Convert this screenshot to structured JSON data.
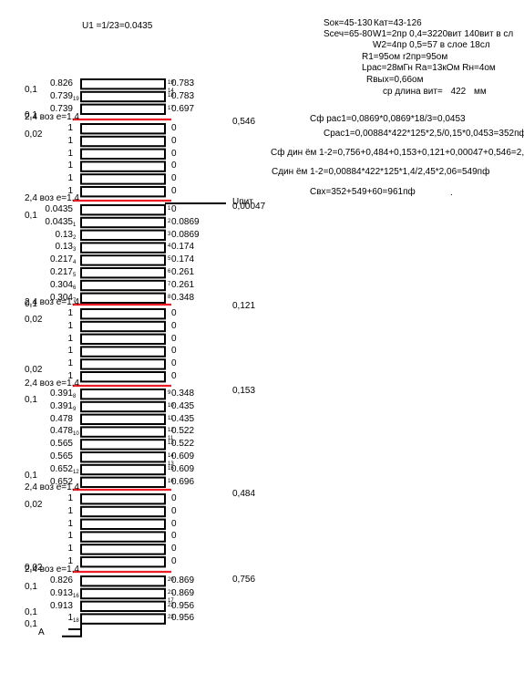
{
  "header": {
    "u1": "U1 =1/23=0.0435",
    "sok": "Sок=45-130",
    "kat": "Кат=43-126",
    "ssech": "Sсеч=65-80",
    "w1": "W1=2пр  0,4=3220вит 140вит в сл",
    "w2": "W2=4пр  0,5=57 в слое   18сл",
    "r1": "R1=95ом    r2пр=95ом",
    "lrac": "Lрас=28мГн  Rа=13кОм  Rн=4ом",
    "rvyh": "Rвых=0,66ом",
    "len_label": "ср длина вит=",
    "len_value": "422",
    "len_unit": "мм"
  },
  "formulas": {
    "cf1": "Сф рас1=0,0869*0,0869*18/3=0,0453",
    "crac1": "Срас1=0,00884*422*125*2,5/0,15*0,0453=352пф",
    "cfdin": "Сф дин ём 1-2=0,756+0,484+0,153+0,121+0,00047+0,546=2,06",
    "cdin": "Сдин ём 1-2=0,00884*422*125*1,4/2,45*2,06=549пф",
    "cvx": "Свх=352+549+60=961пф",
    "dot": "."
  },
  "diagram": {
    "sep_label": "2,4 воз е=1,4",
    "side_labels": {
      "a": "0,1",
      "b": "0,02"
    },
    "upit": "Uпит",
    "terminal": "A",
    "sep_values": [
      "0,546",
      "0,00047",
      "0,121",
      "0,153",
      "0,484",
      "0,756"
    ],
    "blocks": [
      {
        "side": [
          {
            "text": "0,1",
            "row": 0
          },
          {
            "text": "0,1",
            "row": 2
          }
        ],
        "rows": [
          {
            "l": "0.826",
            "r": "0.783",
            "nl": "",
            "nr": "19"
          },
          {
            "l": "0.739",
            "r": "0.783",
            "nl": "19",
            "nr": "18"
          },
          {
            "l": "0.739",
            "r": "0.697",
            "nl": "",
            "nr": "17"
          }
        ],
        "extra_nums": [
          {
            "text": "14",
            "row": 1
          }
        ]
      },
      {
        "side": [
          {
            "text": "0,02",
            "row": 0
          }
        ],
        "rows": [
          {
            "l": "1",
            "r": "0",
            "nl": "",
            "nr": ""
          },
          {
            "l": "1",
            "r": "0",
            "nl": "",
            "nr": ""
          },
          {
            "l": "1",
            "r": "0",
            "nl": "",
            "nr": ""
          },
          {
            "l": "1",
            "r": "0",
            "nl": "",
            "nr": ""
          },
          {
            "l": "1",
            "r": "0",
            "nl": "",
            "nr": ""
          },
          {
            "l": "1",
            "r": "0",
            "nl": "",
            "nr": ""
          }
        ],
        "extra_nums": []
      },
      {
        "side": [
          {
            "text": "0,1",
            "row": 0
          },
          {
            "text": "0,1",
            "row": 7
          }
        ],
        "rows": [
          {
            "l": "0.0435",
            "r": "0",
            "nl": "",
            "nr": "1"
          },
          {
            "l": "0.0435",
            "r": "0.0869",
            "nl": "1",
            "nr": "2"
          },
          {
            "l": "0.13",
            "r": "0.0869",
            "nl": "2",
            "nr": "3"
          },
          {
            "l": "0.13",
            "r": "0.174",
            "nl": "3",
            "nr": "4"
          },
          {
            "l": "0.217",
            "r": "0.174",
            "nl": "4",
            "nr": "5"
          },
          {
            "l": "0.217",
            "r": "0.261",
            "nl": "5",
            "nr": "6"
          },
          {
            "l": "0.304",
            "r": "0.261",
            "nl": "6",
            "nr": "7"
          },
          {
            "l": "0.304",
            "r": "0.348",
            "nl": "7",
            "nr": "8"
          }
        ],
        "extra_nums": []
      },
      {
        "side": [
          {
            "text": "0,02",
            "row": 0
          },
          {
            "text": "0,02",
            "row": 4
          }
        ],
        "rows": [
          {
            "l": "1",
            "r": "0",
            "nl": "",
            "nr": ""
          },
          {
            "l": "1",
            "r": "0",
            "nl": "",
            "nr": ""
          },
          {
            "l": "1",
            "r": "0",
            "nl": "",
            "nr": ""
          },
          {
            "l": "1",
            "r": "0",
            "nl": "",
            "nr": ""
          },
          {
            "l": "1",
            "r": "0",
            "nl": "",
            "nr": ""
          },
          {
            "l": "1",
            "r": "0",
            "nl": "",
            "nr": ""
          }
        ],
        "extra_nums": []
      },
      {
        "side": [
          {
            "text": "0,1",
            "row": 0
          },
          {
            "text": "0,1",
            "row": 6
          }
        ],
        "rows": [
          {
            "l": "0.391",
            "r": "0.348",
            "nl": "8",
            "nr": "9"
          },
          {
            "l": "0.391",
            "r": "0.435",
            "nl": "9",
            "nr": "10"
          },
          {
            "l": "0.478",
            "r": "0.435",
            "nl": "",
            "nr": "11"
          },
          {
            "l": "0.478",
            "r": "0.522",
            "nl": "10",
            "nr": "12"
          },
          {
            "l": "0.565",
            "r": "0.522",
            "nl": "",
            "nr": "13"
          },
          {
            "l": "0.565",
            "r": "0.609",
            "nl": "",
            "nr": "14"
          },
          {
            "l": "0.652",
            "r": "0.609",
            "nl": "12",
            "nr": "15"
          },
          {
            "l": "0.652",
            "r": "0.696",
            "nl": "",
            "nr": "16"
          }
        ],
        "extra_nums": [
          {
            "text": "11",
            "row": 4
          },
          {
            "text": "13",
            "row": 6
          }
        ]
      },
      {
        "side": [
          {
            "text": "0,02",
            "row": 0
          },
          {
            "text": "0,02",
            "row": 5
          }
        ],
        "rows": [
          {
            "l": "1",
            "r": "0",
            "nl": "",
            "nr": ""
          },
          {
            "l": "1",
            "r": "0",
            "nl": "",
            "nr": ""
          },
          {
            "l": "1",
            "r": "0",
            "nl": "",
            "nr": ""
          },
          {
            "l": "1",
            "r": "0",
            "nl": "",
            "nr": ""
          },
          {
            "l": "1",
            "r": "0",
            "nl": "",
            "nr": ""
          },
          {
            "l": "1",
            "r": "0",
            "nl": "",
            "nr": ""
          }
        ],
        "extra_nums": []
      },
      {
        "side": [
          {
            "text": "0,1",
            "row": 0
          },
          {
            "text": "0,1",
            "row": 2
          },
          {
            "text": "0,1",
            "row": 3
          }
        ],
        "rows": [
          {
            "l": "0.826",
            "r": "0.869",
            "nl": "",
            "nr": "20"
          },
          {
            "l": "0.913",
            "r": "0.869",
            "nl": "16",
            "nr": "21"
          },
          {
            "l": "0.913",
            "r": "0.956",
            "nl": "",
            "nr": "22"
          },
          {
            "l": "1",
            "r": "0.956",
            "nl": "18",
            "nr": "23"
          }
        ],
        "extra_nums": [
          {
            "text": "17",
            "row": 2
          }
        ]
      }
    ]
  }
}
